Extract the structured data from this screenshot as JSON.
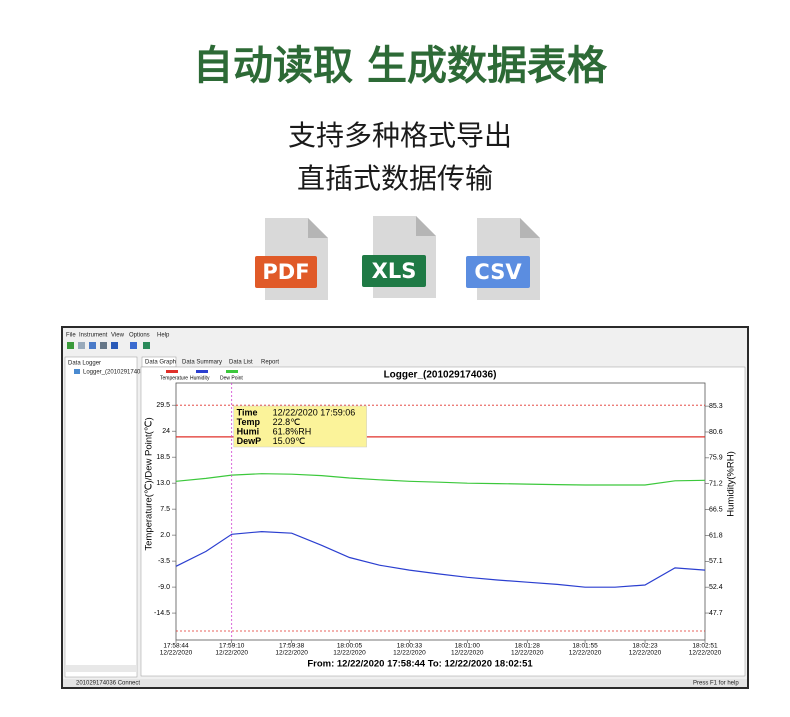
{
  "header": {
    "title": "自动读取 生成数据表格",
    "lines": [
      "支持多种格式导出",
      "直插式数据传输"
    ]
  },
  "file_icons": [
    "PDF",
    "XLS",
    "CSV"
  ],
  "app": {
    "menu": [
      "File",
      "Instrument",
      "View",
      "Options",
      "Help"
    ],
    "sidebar_title": "Data Logger",
    "tree_item": "Logger_(20102917403",
    "tabs": [
      "Data Graph",
      "Data Summary",
      "Data List",
      "Report"
    ],
    "status_left": "201029174036 Connect",
    "status_right": "Press F1 for help"
  },
  "chart_data": {
    "type": "line",
    "title": "Logger_(201029174036)",
    "ylabel": "Temperature(℃)/Dew Point(℃)",
    "y2label": "Humidity(%RH)",
    "ylim": [
      -20.2,
      34.2
    ],
    "yticks": [
      29.5,
      24.0,
      18.5,
      {
        "value": 13.0,
        "label": "13.0"
      },
      7.5,
      {
        "value": 2.0,
        "label": "2.0"
      },
      -3.5,
      {
        "value": -9.0,
        "label": "-9.0"
      },
      -14.5
    ],
    "y2lim": [
      42.8,
      89.5
    ],
    "y2ticks": [
      85.3,
      80.6,
      75.9,
      71.2,
      66.5,
      61.8,
      57.1,
      52.4,
      47.7
    ],
    "xlim": [
      "17:58:44",
      "18:02:51"
    ],
    "xticks": [
      "17:58:44",
      "17:59:10",
      "17:59:38",
      "18:00:05",
      "18:00:33",
      "18:01:00",
      "18:01:28",
      "18:01:55",
      "18:02:23",
      "18:02:51"
    ],
    "x_date": "12/22/2020",
    "x": [
      "17:58:44",
      "17:58:58",
      "17:59:10",
      "17:59:24",
      "17:59:38",
      "17:59:52",
      "18:00:05",
      "18:00:19",
      "18:00:33",
      "18:00:47",
      "18:01:00",
      "18:01:14",
      "18:01:28",
      "18:01:42",
      "18:01:55",
      "18:02:09",
      "18:02:23",
      "18:02:37",
      "18:02:51"
    ],
    "series": [
      {
        "name": "Temperature",
        "color": "#e0302a",
        "axis": "y",
        "values": [
          22.8,
          22.8,
          22.8,
          22.8,
          22.8,
          22.8,
          22.8,
          22.8,
          22.8,
          22.8,
          22.8,
          22.8,
          22.8,
          22.8,
          22.8,
          22.8,
          22.8,
          22.8,
          22.8
        ]
      },
      {
        "name": "Humidity",
        "color": "#2b3fd0",
        "axis": "y2",
        "values": [
          56.2,
          58.9,
          62.0,
          62.5,
          62.2,
          60.0,
          57.8,
          56.4,
          55.5,
          54.8,
          54.2,
          53.7,
          53.3,
          52.9,
          52.4,
          52.4,
          52.8,
          55.9,
          55.5
        ]
      },
      {
        "name": "Dew Point",
        "color": "#3cc83c",
        "axis": "y",
        "values": [
          13.4,
          14.0,
          14.7,
          15.0,
          14.9,
          14.6,
          14.1,
          13.7,
          13.4,
          13.2,
          13.0,
          12.9,
          12.8,
          12.7,
          12.6,
          12.6,
          12.6,
          13.5,
          13.6
        ]
      }
    ],
    "alarm_lines": [
      29.5,
      -18.3
    ],
    "cursor_x": "17:59:10",
    "tooltip": {
      "labels": [
        "Time",
        "Temp",
        "Humi",
        "DewP"
      ],
      "values": [
        "12/22/2020 17:59:06",
        "22.8℃",
        "61.8%RH",
        "15.09℃"
      ]
    },
    "range_label": "From: 12/22/2020 17:58:44 To: 12/22/2020 18:02:51",
    "grid": false
  }
}
